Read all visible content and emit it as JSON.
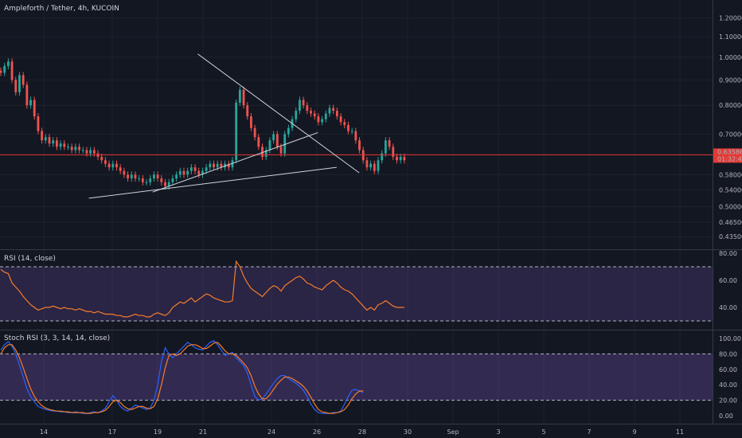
{
  "title": "Ampleforth / Tether, 4h, KUCOIN",
  "colors": {
    "bg": "#131722",
    "up": "#26a69a",
    "down": "#ef5350",
    "rsi": "#f57c2b",
    "stoch_k": "#2962ff",
    "stoch_d": "#f57c2b",
    "band": "#7e57c2",
    "price_line": "#e53935"
  },
  "chart_data": [
    {
      "type": "candlestick",
      "title": "Ampleforth / Tether, 4h, KUCOIN",
      "y_scale": "log",
      "y_ticks": [
        "1.20000",
        "1.10000",
        "1.00000",
        "0.90000",
        "0.80000",
        "0.70000",
        "0.58000",
        "0.54000",
        "0.50000",
        "0.46500",
        "0.43500"
      ],
      "y_tick_values": [
        1.2,
        1.1,
        1.0,
        0.9,
        0.8,
        0.7,
        0.58,
        0.54,
        0.5,
        0.465,
        0.435
      ],
      "x_ticks": [
        "14",
        "17",
        "19",
        "21",
        "24",
        "26",
        "28",
        "30",
        "Sep",
        "3",
        "5",
        "7",
        "9",
        "11"
      ],
      "last_price": "0.63586",
      "countdown": "01:32:48",
      "ohlc_closes": [
        0.93,
        0.96,
        0.98,
        0.9,
        0.85,
        0.92,
        0.88,
        0.8,
        0.82,
        0.76,
        0.71,
        0.68,
        0.69,
        0.67,
        0.68,
        0.66,
        0.67,
        0.66,
        0.66,
        0.65,
        0.66,
        0.65,
        0.65,
        0.64,
        0.65,
        0.64,
        0.63,
        0.62,
        0.61,
        0.6,
        0.61,
        0.6,
        0.59,
        0.58,
        0.57,
        0.58,
        0.57,
        0.57,
        0.56,
        0.56,
        0.57,
        0.58,
        0.57,
        0.56,
        0.55,
        0.56,
        0.57,
        0.58,
        0.59,
        0.58,
        0.59,
        0.6,
        0.59,
        0.58,
        0.59,
        0.6,
        0.61,
        0.6,
        0.61,
        0.6,
        0.61,
        0.6,
        0.62,
        0.81,
        0.86,
        0.8,
        0.76,
        0.72,
        0.69,
        0.66,
        0.63,
        0.65,
        0.68,
        0.7,
        0.66,
        0.64,
        0.7,
        0.72,
        0.75,
        0.78,
        0.82,
        0.8,
        0.78,
        0.77,
        0.76,
        0.74,
        0.75,
        0.77,
        0.79,
        0.78,
        0.76,
        0.74,
        0.73,
        0.71,
        0.71,
        0.68,
        0.65,
        0.62,
        0.6,
        0.61,
        0.59,
        0.62,
        0.64,
        0.68,
        0.66,
        0.63,
        0.62,
        0.63,
        0.62
      ],
      "trendlines": [
        {
          "x1": "Aug 16 00:00",
          "y1": 0.52,
          "x2": "Aug 27 00:00",
          "y2": 0.6
        },
        {
          "x1": "Aug 18 20:00",
          "y1": 0.535,
          "x2": "Aug 26 04:00",
          "y2": 0.705
        },
        {
          "x1": "Aug 20 20:00",
          "y1": 1.015,
          "x2": "Aug 28 00:00",
          "y2": 0.585
        }
      ]
    },
    {
      "type": "line",
      "title": "RSI (14, close)",
      "y_ticks": [
        "80.00",
        "60.00",
        "40.00"
      ],
      "bands": [
        70,
        30
      ],
      "values": [
        68,
        66,
        65,
        58,
        55,
        52,
        48,
        45,
        42,
        40,
        38,
        39,
        40,
        40,
        41,
        40,
        39,
        40,
        39,
        39,
        38,
        39,
        38,
        37,
        37,
        36,
        37,
        36,
        35,
        35,
        35,
        34,
        34,
        33,
        33,
        34,
        35,
        34,
        34,
        33,
        33,
        35,
        36,
        35,
        34,
        36,
        40,
        42,
        44,
        43,
        45,
        47,
        44,
        46,
        48,
        50,
        49,
        47,
        46,
        45,
        44,
        44,
        45,
        74,
        70,
        63,
        58,
        54,
        52,
        50,
        48,
        51,
        54,
        56,
        55,
        52,
        56,
        58,
        60,
        62,
        63,
        61,
        58,
        57,
        55,
        54,
        53,
        56,
        58,
        60,
        58,
        55,
        53,
        52,
        50,
        47,
        44,
        41,
        38,
        40,
        38,
        42,
        43,
        45,
        43,
        41,
        40,
        40,
        40
      ]
    },
    {
      "type": "line",
      "title": "Stoch RSI (3, 3, 14, 14, close)",
      "y_ticks": [
        "100.00",
        "80.00",
        "60.00",
        "40.00",
        "20.00",
        "0.00"
      ],
      "bands": [
        80,
        20
      ],
      "series": [
        {
          "values": [
            85,
            92,
            96,
            90,
            80,
            65,
            50,
            35,
            25,
            18,
            12,
            10,
            8,
            7,
            6,
            6,
            5,
            5,
            4,
            4,
            5,
            4,
            3,
            3,
            4,
            5,
            4,
            6,
            10,
            18,
            26,
            20,
            12,
            8,
            6,
            10,
            14,
            12,
            10,
            8,
            10,
            20,
            40,
            70,
            88,
            80,
            75,
            80,
            85,
            90,
            95,
            92,
            88,
            86,
            85,
            90,
            95,
            97,
            92,
            85,
            78,
            80,
            82,
            75,
            70,
            65,
            55,
            40,
            25,
            20,
            22,
            28,
            35,
            42,
            48,
            52,
            52,
            48,
            45,
            42,
            38,
            33,
            25,
            15,
            8,
            4,
            3,
            3,
            3,
            4,
            4,
            6,
            15,
            25,
            33,
            34,
            32,
            30
          ]
        },
        {
          "values": [
            80,
            88,
            92,
            92,
            85,
            75,
            62,
            48,
            35,
            25,
            18,
            13,
            10,
            8,
            7,
            6,
            6,
            5,
            5,
            4,
            4,
            4,
            4,
            3,
            3,
            4,
            4,
            5,
            7,
            12,
            18,
            20,
            17,
            12,
            9,
            8,
            10,
            12,
            12,
            10,
            9,
            12,
            22,
            40,
            62,
            78,
            80,
            78,
            80,
            85,
            90,
            92,
            92,
            90,
            87,
            87,
            90,
            94,
            95,
            90,
            84,
            80,
            80,
            78,
            73,
            68,
            62,
            52,
            38,
            28,
            22,
            22,
            27,
            34,
            41,
            46,
            50,
            50,
            48,
            45,
            42,
            38,
            32,
            24,
            15,
            8,
            5,
            4,
            3,
            3,
            4,
            5,
            8,
            14,
            22,
            28,
            32,
            32
          ]
        }
      ]
    }
  ]
}
